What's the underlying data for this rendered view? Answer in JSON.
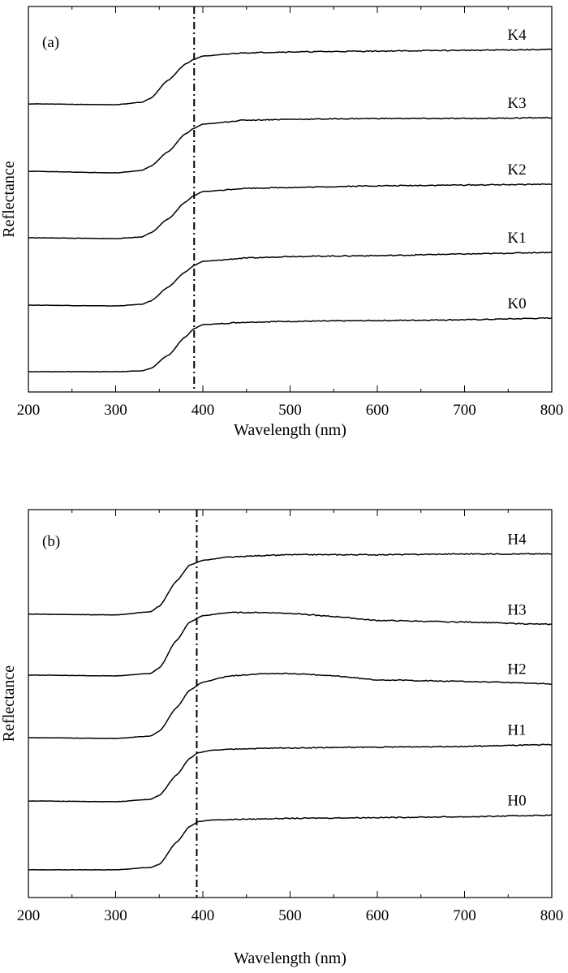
{
  "chart_data": [
    {
      "type": "line",
      "panel_label": "(a)",
      "xlabel": "Wavelength (nm)",
      "ylabel": "Reflectance",
      "xlim": [
        200,
        800
      ],
      "xticks": [
        200,
        300,
        400,
        500,
        600,
        700,
        800
      ],
      "y_tick_labels": false,
      "reference_line": {
        "x": 390,
        "style": "dash-dot"
      },
      "series": [
        {
          "name": "K0",
          "x": [
            200,
            300,
            330,
            340,
            360,
            380,
            390,
            400,
            450,
            500,
            600,
            700,
            800
          ],
          "y": [
            0.05,
            0.05,
            0.06,
            0.09,
            0.25,
            0.48,
            0.58,
            0.63,
            0.66,
            0.67,
            0.68,
            0.69,
            0.71
          ]
        },
        {
          "name": "K1",
          "x": [
            200,
            300,
            330,
            340,
            360,
            380,
            390,
            400,
            450,
            500,
            600,
            700,
            800
          ],
          "y": [
            0.87,
            0.86,
            0.88,
            0.92,
            1.09,
            1.28,
            1.36,
            1.41,
            1.45,
            1.47,
            1.48,
            1.5,
            1.52
          ]
        },
        {
          "name": "K2",
          "x": [
            200,
            300,
            330,
            340,
            360,
            380,
            390,
            400,
            450,
            500,
            600,
            700,
            800
          ],
          "y": [
            1.7,
            1.69,
            1.71,
            1.76,
            1.93,
            2.14,
            2.22,
            2.27,
            2.31,
            2.32,
            2.34,
            2.35,
            2.36
          ]
        },
        {
          "name": "K3",
          "x": [
            200,
            300,
            330,
            340,
            360,
            380,
            390,
            400,
            450,
            500,
            600,
            700,
            800
          ],
          "y": [
            2.52,
            2.5,
            2.53,
            2.58,
            2.76,
            2.98,
            3.05,
            3.1,
            3.15,
            3.16,
            3.17,
            3.17,
            3.18
          ]
        },
        {
          "name": "K4",
          "x": [
            200,
            300,
            330,
            340,
            360,
            380,
            390,
            400,
            450,
            500,
            600,
            700,
            800
          ],
          "y": [
            3.35,
            3.34,
            3.37,
            3.42,
            3.64,
            3.84,
            3.9,
            3.94,
            3.98,
            3.99,
            4.0,
            4.01,
            4.02
          ]
        }
      ]
    },
    {
      "type": "line",
      "panel_label": "(b)",
      "xlabel": "Wavelength (nm)",
      "ylabel": "Reflectance",
      "xlim": [
        200,
        800
      ],
      "xticks": [
        200,
        300,
        400,
        500,
        600,
        700,
        800
      ],
      "y_tick_labels": false,
      "reference_line": {
        "x": 393,
        "style": "dashed"
      },
      "series": [
        {
          "name": "H0",
          "x": [
            200,
            300,
            340,
            350,
            370,
            385,
            395,
            410,
            450,
            500,
            600,
            700,
            800
          ],
          "y": [
            0.05,
            0.05,
            0.08,
            0.12,
            0.4,
            0.6,
            0.66,
            0.68,
            0.69,
            0.7,
            0.71,
            0.72,
            0.74
          ]
        },
        {
          "name": "H1",
          "x": [
            200,
            300,
            340,
            350,
            370,
            385,
            395,
            410,
            450,
            500,
            600,
            700,
            800
          ],
          "y": [
            0.92,
            0.91,
            0.94,
            0.99,
            1.25,
            1.46,
            1.53,
            1.56,
            1.58,
            1.59,
            1.6,
            1.61,
            1.63
          ]
        },
        {
          "name": "H2",
          "x": [
            200,
            300,
            340,
            350,
            370,
            385,
            400,
            430,
            470,
            500,
            550,
            600,
            700,
            800
          ],
          "y": [
            1.72,
            1.71,
            1.74,
            1.8,
            2.1,
            2.32,
            2.42,
            2.5,
            2.53,
            2.53,
            2.5,
            2.45,
            2.43,
            2.4
          ]
        },
        {
          "name": "H3",
          "x": [
            200,
            300,
            340,
            350,
            370,
            385,
            400,
            430,
            470,
            500,
            550,
            600,
            700,
            800
          ],
          "y": [
            2.51,
            2.5,
            2.53,
            2.6,
            2.95,
            3.18,
            3.26,
            3.3,
            3.3,
            3.29,
            3.25,
            3.2,
            3.18,
            3.15
          ]
        },
        {
          "name": "H4",
          "x": [
            200,
            300,
            340,
            350,
            370,
            385,
            400,
            430,
            470,
            500,
            600,
            700,
            800
          ],
          "y": [
            3.28,
            3.27,
            3.31,
            3.38,
            3.7,
            3.9,
            3.96,
            4.0,
            4.02,
            4.03,
            4.03,
            4.04,
            4.04
          ]
        }
      ]
    }
  ]
}
